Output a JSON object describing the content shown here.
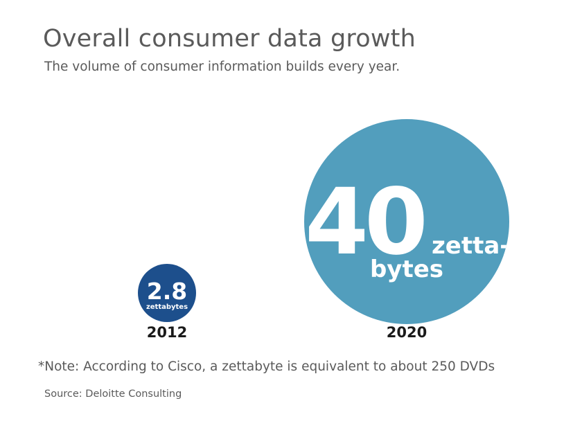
{
  "header": {
    "title": "Overall consumer data growth",
    "subtitle": "The volume of consumer information builds every year."
  },
  "colors": {
    "circle_2012": "#1d4f8c",
    "circle_2020": "#529ebd",
    "text_gray": "#5a5a5a"
  },
  "chart_data": {
    "type": "bubble",
    "unit": "zettabytes",
    "categories": [
      "2012",
      "2020"
    ],
    "values": [
      2.8,
      40
    ],
    "labels": [
      {
        "value_text": "2.8",
        "unit_text": "zettabytes"
      },
      {
        "value_text": "40",
        "unit_line1": "zetta-",
        "unit_line2": "bytes"
      }
    ]
  },
  "footer": {
    "note": "*Note: According to Cisco, a zettabyte is equivalent to about 250 DVDs",
    "source": "Source: Deloitte Consulting"
  }
}
